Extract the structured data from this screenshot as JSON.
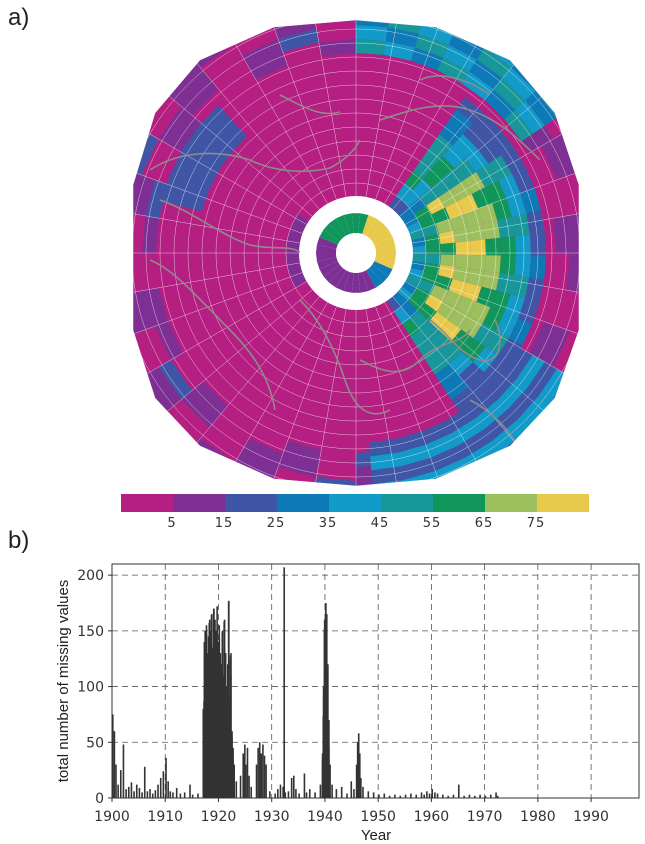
{
  "panels": {
    "a": {
      "label": "a)"
    },
    "b": {
      "label": "b)"
    }
  },
  "chart_data": [
    {
      "type": "heatmap",
      "title": "",
      "projection": "north-polar stereographic",
      "colorbar": {
        "tick_labels": [
          "5",
          "15",
          "25",
          "35",
          "45",
          "55",
          "65",
          "75"
        ],
        "colors": [
          "#b51f82",
          "#7d2f93",
          "#3f56a7",
          "#0d79b7",
          "#129bc8",
          "#18979a",
          "#10955a",
          "#9dbf5d",
          "#e7c94c"
        ],
        "bins": [
          0,
          10,
          20,
          30,
          40,
          50,
          60,
          70,
          80
        ]
      }
    },
    {
      "type": "bar",
      "xlabel": "Year",
      "ylabel": "total number of missing values",
      "xlim": [
        1900,
        1999
      ],
      "ylim": [
        0,
        210
      ],
      "x_ticks": [
        1900,
        1910,
        1920,
        1930,
        1940,
        1950,
        1960,
        1970,
        1980,
        1990
      ],
      "y_ticks": [
        0,
        50,
        100,
        150,
        200
      ],
      "grid": true,
      "series": [
        {
          "points": [
            [
              1900.0,
              75
            ],
            [
              1900.3,
              60
            ],
            [
              1900.6,
              30
            ],
            [
              1901.0,
              12
            ],
            [
              1901.5,
              25
            ],
            [
              1902.0,
              48
            ],
            [
              1902.5,
              8
            ],
            [
              1903.0,
              10
            ],
            [
              1903.5,
              14
            ],
            [
              1904.0,
              6
            ],
            [
              1904.5,
              12
            ],
            [
              1905.0,
              9
            ],
            [
              1905.5,
              5
            ],
            [
              1906.0,
              28
            ],
            [
              1906.5,
              6
            ],
            [
              1907.0,
              8
            ],
            [
              1907.5,
              4
            ],
            [
              1908.0,
              7
            ],
            [
              1908.5,
              12
            ],
            [
              1909.0,
              18
            ],
            [
              1909.5,
              24
            ],
            [
              1910.0,
              36
            ],
            [
              1910.4,
              15
            ],
            [
              1910.8,
              6
            ],
            [
              1911.3,
              5
            ],
            [
              1912.0,
              9
            ],
            [
              1912.7,
              4
            ],
            [
              1913.5,
              5
            ],
            [
              1914.5,
              12
            ],
            [
              1915.0,
              3
            ],
            [
              1916.0,
              4
            ],
            [
              1917.0,
              80
            ],
            [
              1917.2,
              140
            ],
            [
              1917.4,
              150
            ],
            [
              1917.6,
              155
            ],
            [
              1917.8,
              130
            ],
            [
              1918.0,
              145
            ],
            [
              1918.2,
              160
            ],
            [
              1918.4,
              150
            ],
            [
              1918.6,
              165
            ],
            [
              1918.8,
              135
            ],
            [
              1919.0,
              170
            ],
            [
              1919.2,
              160
            ],
            [
              1919.4,
              150
            ],
            [
              1919.6,
              172
            ],
            [
              1919.8,
              140
            ],
            [
              1920.0,
              155
            ],
            [
              1920.2,
              130
            ],
            [
              1920.4,
              120
            ],
            [
              1920.6,
              150
            ],
            [
              1920.8,
              110
            ],
            [
              1921.0,
              160
            ],
            [
              1921.2,
              130
            ],
            [
              1921.4,
              100
            ],
            [
              1921.6,
              120
            ],
            [
              1921.8,
              177
            ],
            [
              1922.0,
              90
            ],
            [
              1922.2,
              130
            ],
            [
              1922.4,
              60
            ],
            [
              1922.6,
              45
            ],
            [
              1922.8,
              30
            ],
            [
              1923.2,
              15
            ],
            [
              1924.0,
              20
            ],
            [
              1924.5,
              40
            ],
            [
              1924.8,
              48
            ],
            [
              1925.0,
              30
            ],
            [
              1925.3,
              45
            ],
            [
              1925.6,
              20
            ],
            [
              1926.0,
              10
            ],
            [
              1927.0,
              30
            ],
            [
              1927.3,
              45
            ],
            [
              1927.6,
              50
            ],
            [
              1927.9,
              40
            ],
            [
              1928.2,
              48
            ],
            [
              1928.5,
              38
            ],
            [
              1928.8,
              30
            ],
            [
              1929.5,
              6
            ],
            [
              1930.5,
              4
            ],
            [
              1931.0,
              8
            ],
            [
              1931.5,
              12
            ],
            [
              1932.0,
              10
            ],
            [
              1932.2,
              207
            ],
            [
              1932.4,
              5
            ],
            [
              1933.0,
              6
            ],
            [
              1933.6,
              18
            ],
            [
              1934.0,
              20
            ],
            [
              1934.4,
              8
            ],
            [
              1935.0,
              4
            ],
            [
              1936.0,
              22
            ],
            [
              1936.4,
              5
            ],
            [
              1937.0,
              8
            ],
            [
              1938.0,
              5
            ],
            [
              1939.0,
              12
            ],
            [
              1939.4,
              40
            ],
            [
              1939.6,
              100
            ],
            [
              1939.8,
              160
            ],
            [
              1940.0,
              175
            ],
            [
              1940.2,
              165
            ],
            [
              1940.4,
              120
            ],
            [
              1940.6,
              70
            ],
            [
              1940.8,
              30
            ],
            [
              1941.2,
              12
            ],
            [
              1942.0,
              8
            ],
            [
              1943.0,
              10
            ],
            [
              1944.0,
              4
            ],
            [
              1944.8,
              15
            ],
            [
              1945.3,
              8
            ],
            [
              1945.8,
              30
            ],
            [
              1946.0,
              50
            ],
            [
              1946.2,
              58
            ],
            [
              1946.4,
              40
            ],
            [
              1946.6,
              18
            ],
            [
              1947.0,
              10
            ],
            [
              1948.0,
              6
            ],
            [
              1949.0,
              5
            ],
            [
              1950.0,
              3
            ],
            [
              1951.0,
              4
            ],
            [
              1952.0,
              2
            ],
            [
              1953.0,
              3
            ],
            [
              1954.0,
              2
            ],
            [
              1955.0,
              3
            ],
            [
              1956.0,
              4
            ],
            [
              1957.0,
              3
            ],
            [
              1958.0,
              5
            ],
            [
              1958.5,
              3
            ],
            [
              1959.0,
              6
            ],
            [
              1959.5,
              4
            ],
            [
              1960.0,
              8
            ],
            [
              1960.5,
              5
            ],
            [
              1961.0,
              4
            ],
            [
              1962.0,
              3
            ],
            [
              1963.0,
              2
            ],
            [
              1964.0,
              3
            ],
            [
              1965.0,
              12
            ],
            [
              1966.0,
              2
            ],
            [
              1967.0,
              3
            ],
            [
              1968.0,
              2
            ],
            [
              1969.0,
              3
            ],
            [
              1970.0,
              2
            ],
            [
              1971.0,
              3
            ],
            [
              1972.0,
              5
            ],
            [
              1972.3,
              2
            ]
          ]
        }
      ]
    }
  ]
}
